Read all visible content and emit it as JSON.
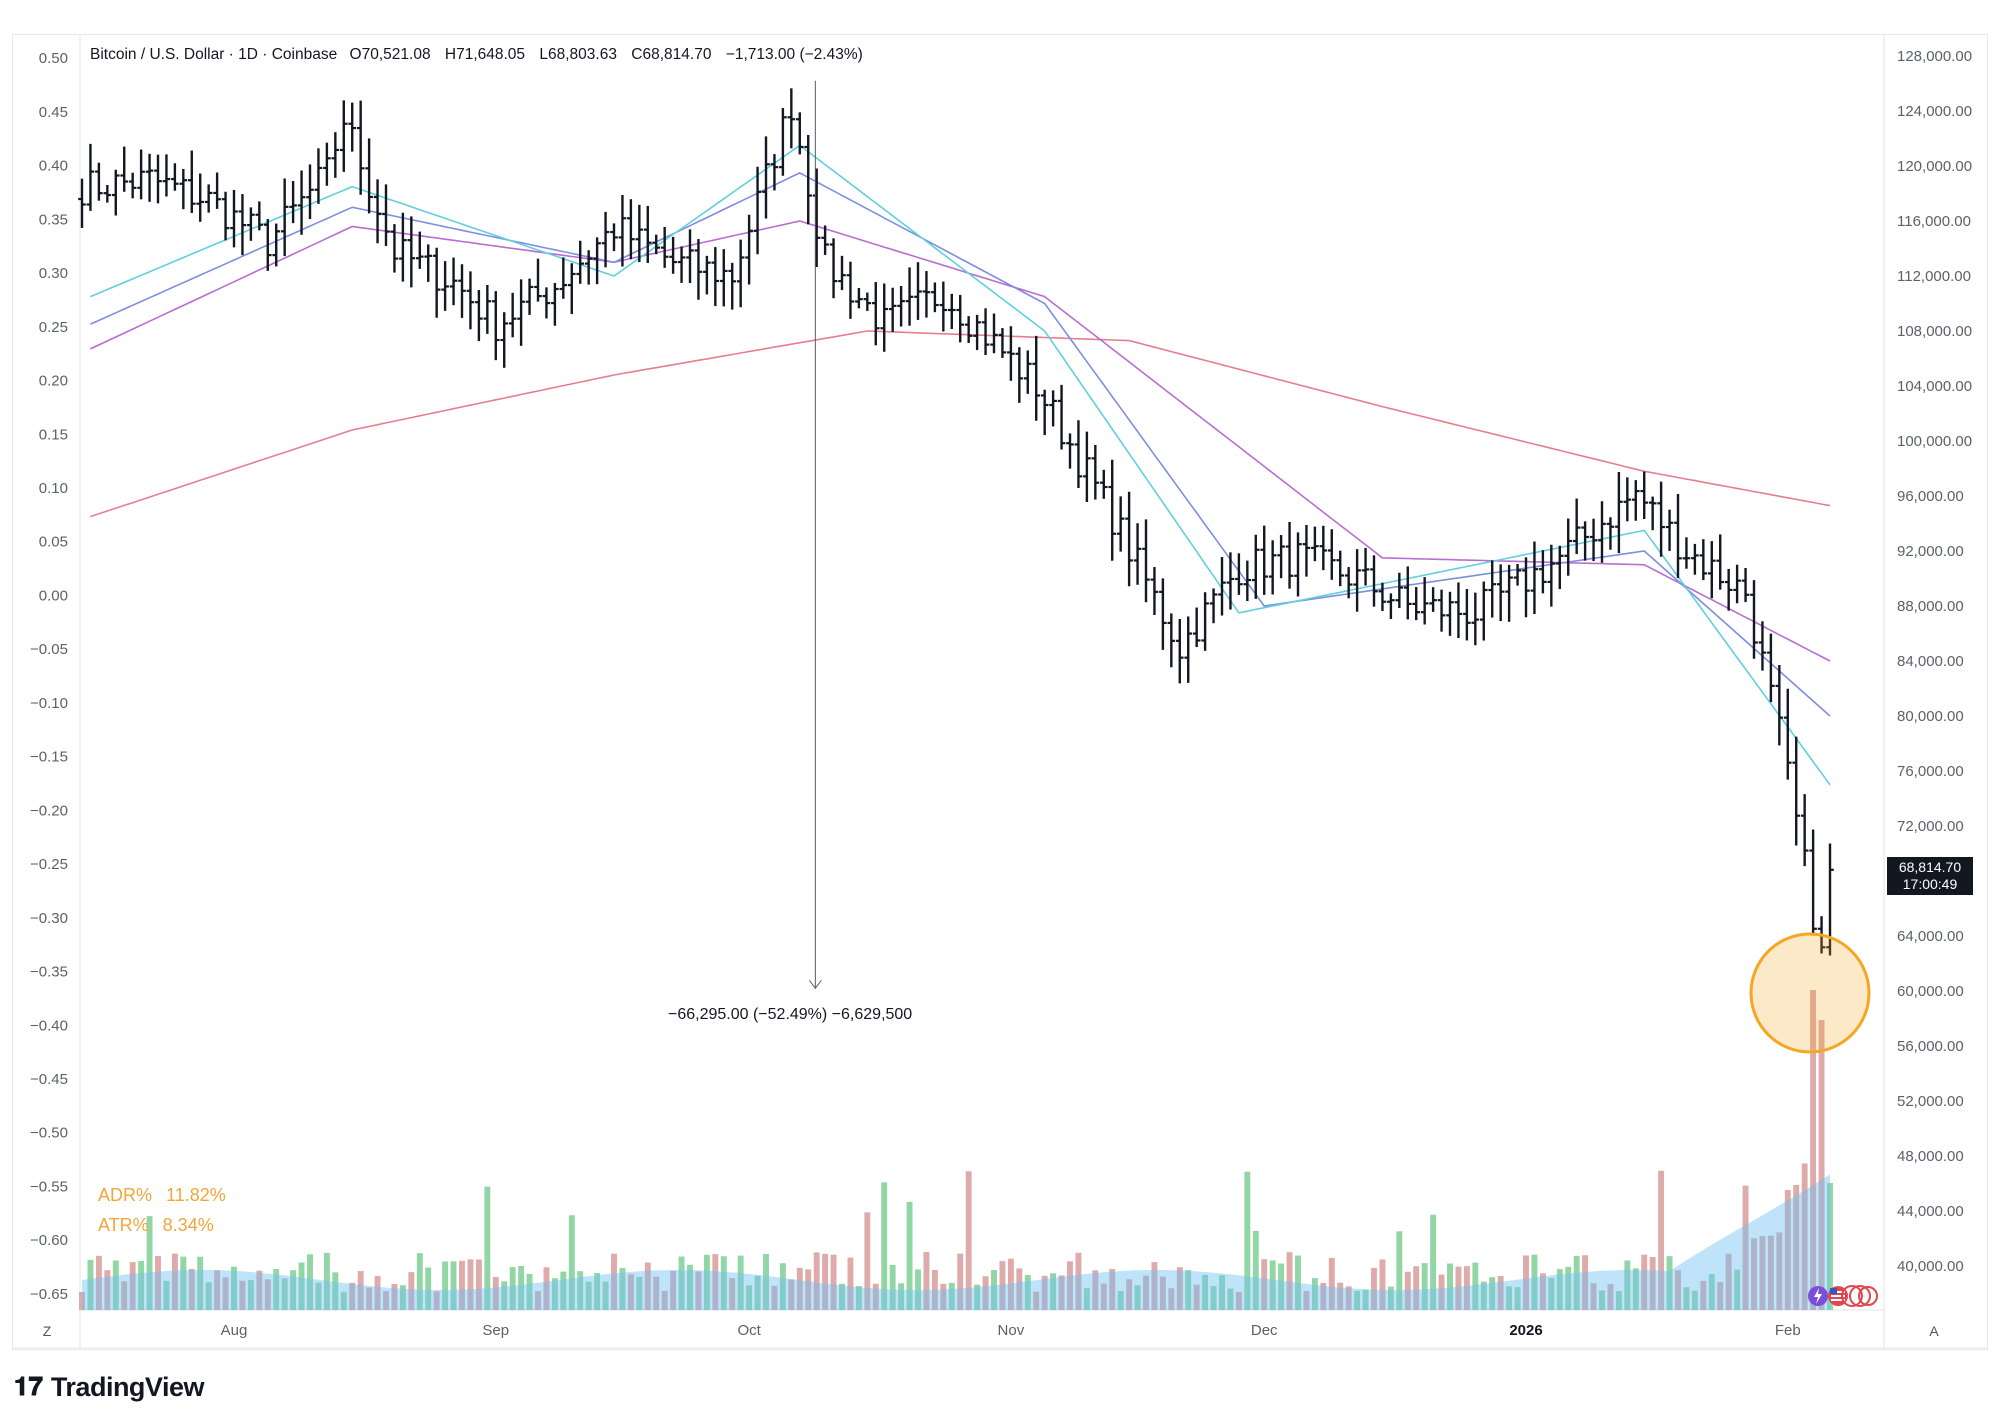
{
  "header": {
    "symbol": "Bitcoin / U.S. Dollar · 1D · Coinbase",
    "open_key": "O",
    "open": "70,521.08",
    "high_key": "H",
    "high": "71,648.05",
    "low_key": "L",
    "low": "68,803.63",
    "close_key": "C",
    "close": "68,814.70",
    "change": "−1,713.00 (−2.43%)"
  },
  "indicators": {
    "adr_label": "ADR%",
    "adr_value": "11.82%",
    "atr_label": "ATR%",
    "atr_value": "8.34%"
  },
  "measure": {
    "label": "−66,295.00 (−52.49%) −6,629,500"
  },
  "price_tag": {
    "price": "68,814.70",
    "countdown": "17:00:49"
  },
  "buttons": {
    "left": "Z",
    "right": "A"
  },
  "brand": {
    "name": "TradingView",
    "icon": "tradingview-logo-icon"
  },
  "colors": {
    "bars": "#131722",
    "sma200": "#e57f8e",
    "sma50": "#b86ed0",
    "ema21": "#7e8fe0",
    "ema10": "#5fd0de",
    "vol_up": "#7fcf97",
    "vol_down": "#d89b9b",
    "vol_ma": "#72c1f2",
    "highlight": "#f5a623"
  },
  "chart_data": {
    "type": "line",
    "title": "Bitcoin / U.S. Dollar · 1D · Coinbase",
    "x_axis_labels": [
      "Aug",
      "Sep",
      "Oct",
      "Nov",
      "Dec",
      "2026",
      "Feb"
    ],
    "y_right_labels": [
      "128,000.00",
      "124,000.00",
      "120,000.00",
      "116,000.00",
      "112,000.00",
      "108,000.00",
      "104,000.00",
      "100,000.00",
      "96,000.00",
      "92,000.00",
      "88,000.00",
      "84,000.00",
      "80,000.00",
      "76,000.00",
      "72,000.00",
      "68,000.00",
      "64,000.00",
      "60,000.00",
      "56,000.00",
      "52,000.00",
      "48,000.00",
      "44,000.00",
      "40,000.00"
    ],
    "y_left_labels": [
      "0.50",
      "0.45",
      "0.40",
      "0.35",
      "0.30",
      "0.25",
      "0.20",
      "0.15",
      "0.10",
      "0.05",
      "0.00",
      "−0.05",
      "−0.10",
      "−0.15",
      "−0.20",
      "−0.25",
      "−0.30",
      "−0.35",
      "−0.40",
      "−0.45",
      "−0.50",
      "−0.55",
      "−0.60",
      "−0.65"
    ],
    "y_right_range": [
      36800,
      129600
    ],
    "y_left_range": [
      -0.665,
      0.5225
    ],
    "series": [
      {
        "name": "",
        "kind": "price_ohlc_close",
        "x": [
          "2025-07-15",
          "2025-07-22",
          "2025-07-29",
          "2025-08-05",
          "2025-08-12",
          "2025-08-14",
          "2025-08-20",
          "2025-08-27",
          "2025-09-01",
          "2025-09-08",
          "2025-09-15",
          "2025-09-22",
          "2025-09-29",
          "2025-10-06",
          "2025-10-10",
          "2025-10-17",
          "2025-10-24",
          "2025-11-04",
          "2025-11-13",
          "2025-11-21",
          "2025-11-28",
          "2025-12-05",
          "2025-12-12",
          "2025-12-18",
          "2025-12-26",
          "2026-01-05",
          "2026-01-14",
          "2026-01-20",
          "2026-01-27",
          "2026-01-31",
          "2026-02-05",
          "2026-02-06"
        ],
        "y": [
          118500,
          119000,
          117500,
          114500,
          119500,
          123500,
          113800,
          111500,
          108500,
          111300,
          115500,
          113000,
          112000,
          124500,
          113000,
          108500,
          110800,
          104000,
          94500,
          85000,
          90800,
          91500,
          90000,
          88000,
          87500,
          91500,
          96200,
          92000,
          89000,
          78800,
          62500,
          68814.7
        ]
      },
      {
        "name": "",
        "kind": "sma200",
        "x": [
          "2025-07-15",
          "2025-08-15",
          "2025-09-15",
          "2025-10-15",
          "2025-11-15",
          "2025-12-15",
          "2026-01-15",
          "2026-02-06"
        ],
        "y": [
          94500,
          100800,
          104800,
          108000,
          107300,
          102500,
          97800,
          95300
        ]
      },
      {
        "name": "",
        "kind": "sma50",
        "x": [
          "2025-07-15",
          "2025-08-15",
          "2025-09-15",
          "2025-10-07",
          "2025-11-05",
          "2025-12-15",
          "2026-01-15",
          "2026-02-06"
        ],
        "y": [
          106700,
          115600,
          113000,
          116000,
          110500,
          91500,
          91000,
          84000
        ]
      },
      {
        "name": "",
        "kind": "ema21",
        "x": [
          "2025-07-15",
          "2025-08-15",
          "2025-09-15",
          "2025-10-07",
          "2025-11-05",
          "2025-12-01",
          "2026-01-15",
          "2026-02-06"
        ],
        "y": [
          108500,
          117000,
          113000,
          119500,
          110000,
          88000,
          92000,
          80000
        ]
      },
      {
        "name": "",
        "kind": "ema10",
        "x": [
          "2025-07-15",
          "2025-08-15",
          "2025-09-15",
          "2025-10-07",
          "2025-11-05",
          "2025-11-28",
          "2026-01-15",
          "2026-02-06"
        ],
        "y": [
          110500,
          118500,
          112000,
          121500,
          108000,
          87500,
          93500,
          75000
        ]
      }
    ],
    "measure": {
      "from": "2025-10-06",
      "change": -66295.0,
      "percent": -52.49
    },
    "grid": false,
    "legend": "none"
  }
}
